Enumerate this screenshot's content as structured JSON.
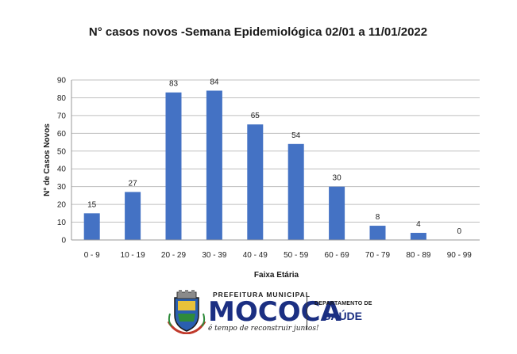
{
  "chart_data": {
    "type": "bar",
    "title": "N° casos novos  -Semana Epidemiológica  02/01 a 11/01/2022",
    "xlabel": "Faixa Etária",
    "ylabel": "N° de Casos Novos",
    "categories": [
      "0 - 9",
      "10 - 19",
      "20 - 29",
      "30 - 39",
      "40 - 49",
      "50 - 59",
      "60 - 69",
      "70 - 79",
      "80 - 89",
      "90 - 99"
    ],
    "values": [
      15,
      27,
      83,
      84,
      65,
      54,
      30,
      8,
      4,
      0
    ],
    "ylim": [
      0,
      90
    ],
    "yticks": [
      0,
      10,
      20,
      30,
      40,
      50,
      60,
      70,
      80,
      90
    ],
    "grid": true,
    "legend": "none",
    "bar_color": "#4472c4"
  },
  "footer": {
    "prefeitura": "PREFEITURA MUNICIPAL",
    "brand": "MOCOCA",
    "slogan": "é tempo de reconstruir juntos!",
    "department": "DEPARTAMENTO DE",
    "department_name": "SAÚDE",
    "crest_icon": "municipal-crest-icon",
    "brand_color": "#1b2f82"
  }
}
